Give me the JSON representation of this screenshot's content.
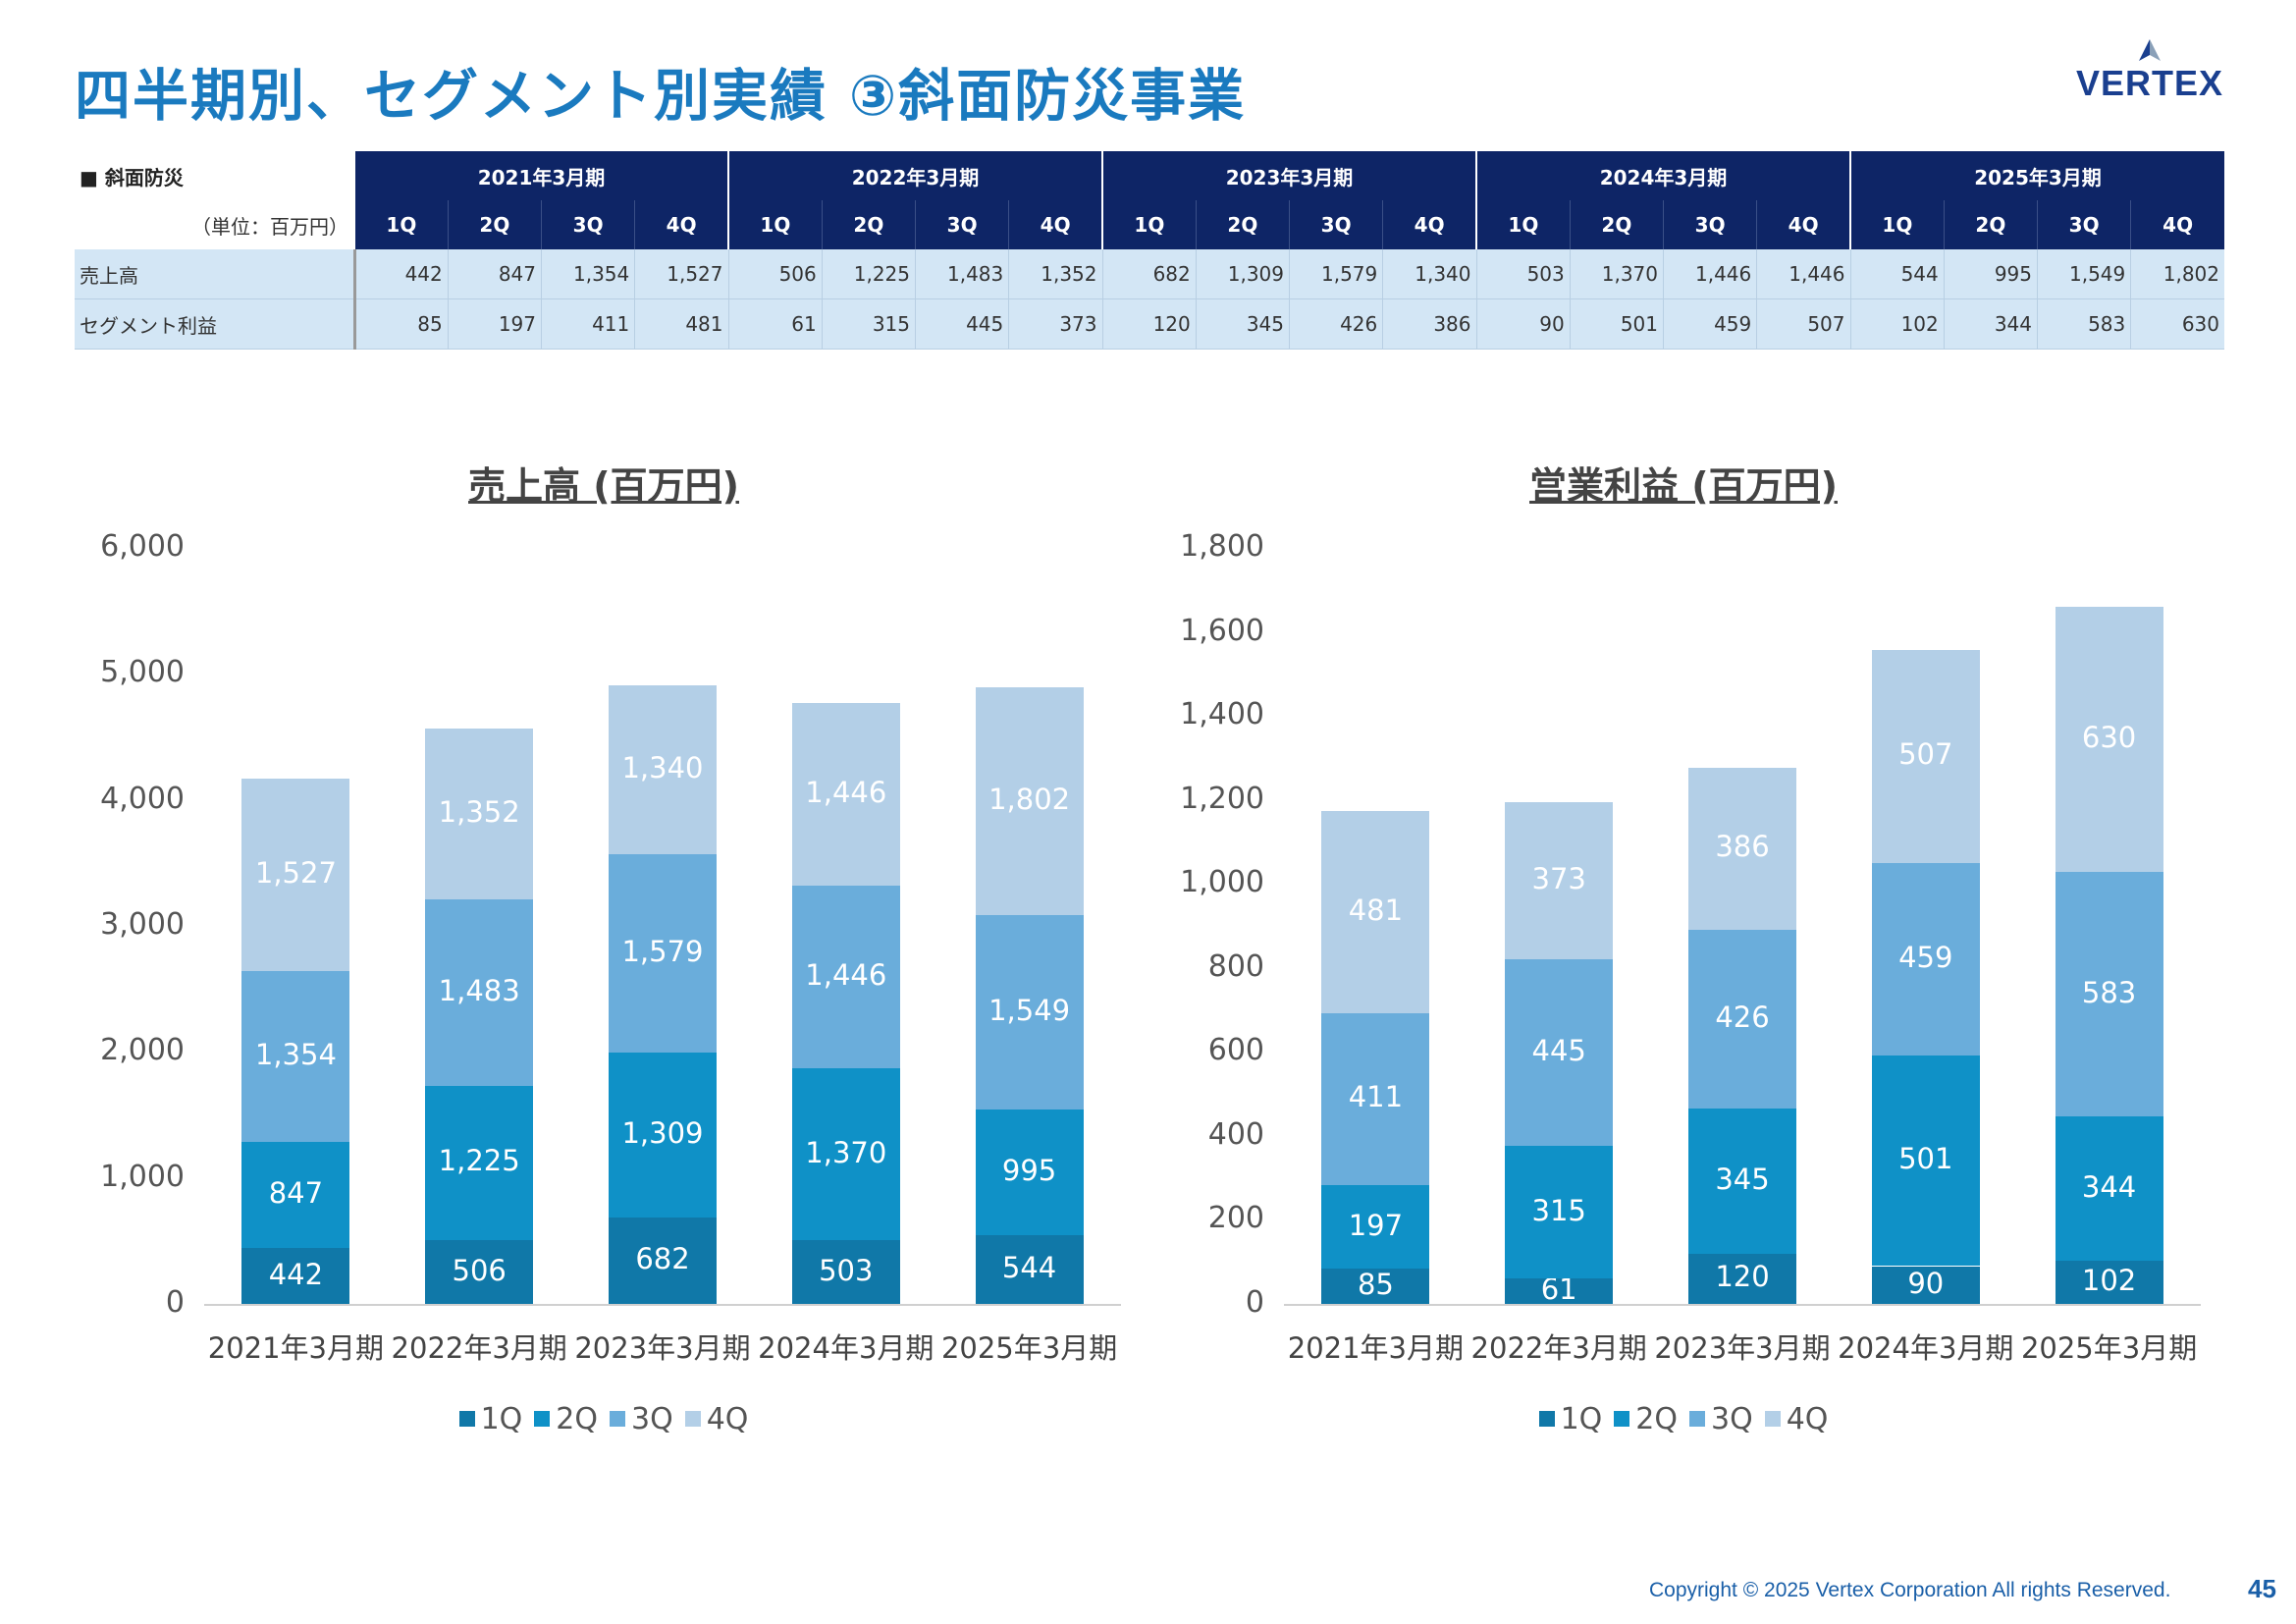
{
  "page": {
    "title": "四半期別、セグメント別実績 ③斜面防災事業",
    "logo_text": "VERTEX",
    "footer": "Copyright © 2025 Vertex Corporation All rights Reserved.",
    "page_number": "45"
  },
  "table": {
    "section_label": "■ 斜面防災",
    "unit_label": "（単位：百万円）",
    "years": [
      "2021年3月期",
      "2022年3月期",
      "2023年3月期",
      "2024年3月期",
      "2025年3月期"
    ],
    "quarters": [
      "1Q",
      "2Q",
      "3Q",
      "4Q"
    ],
    "rows": [
      {
        "label": "売上高",
        "values": [
          "442",
          "847",
          "1,354",
          "1,527",
          "506",
          "1,225",
          "1,483",
          "1,352",
          "682",
          "1,309",
          "1,579",
          "1,340",
          "503",
          "1,370",
          "1,446",
          "1,446",
          "544",
          "995",
          "1,549",
          "1,802"
        ]
      },
      {
        "label": "セグメント利益",
        "values": [
          "85",
          "197",
          "411",
          "481",
          "61",
          "315",
          "445",
          "373",
          "120",
          "345",
          "426",
          "386",
          "90",
          "501",
          "459",
          "507",
          "102",
          "344",
          "583",
          "630"
        ]
      }
    ]
  },
  "colors": {
    "q1": "#1078a8",
    "q2": "#0f91c7",
    "q3": "#6aaddb",
    "q4": "#b3cfe7",
    "title": "#1a7abf",
    "header": "#0e2566"
  },
  "chart_data": [
    {
      "type": "bar",
      "stacked": true,
      "title": "売上高 (百万円)",
      "categories": [
        "2021年3月期",
        "2022年3月期",
        "2023年3月期",
        "2024年3月期",
        "2025年3月期"
      ],
      "series": [
        {
          "name": "1Q",
          "values": [
            442,
            506,
            682,
            503,
            544
          ]
        },
        {
          "name": "2Q",
          "values": [
            847,
            1225,
            1309,
            1370,
            995
          ]
        },
        {
          "name": "3Q",
          "values": [
            1354,
            1483,
            1579,
            1446,
            1549
          ]
        },
        {
          "name": "4Q",
          "values": [
            1527,
            1352,
            1340,
            1446,
            1802
          ]
        }
      ],
      "ylim": [
        0,
        6000
      ],
      "yticks": [
        "0",
        "1,000",
        "2,000",
        "3,000",
        "4,000",
        "5,000",
        "6,000"
      ],
      "legend_position": "bottom",
      "grid": false
    },
    {
      "type": "bar",
      "stacked": true,
      "title": "営業利益 (百万円)",
      "categories": [
        "2021年3月期",
        "2022年3月期",
        "2023年3月期",
        "2024年3月期",
        "2025年3月期"
      ],
      "series": [
        {
          "name": "1Q",
          "values": [
            85,
            61,
            120,
            90,
            102
          ]
        },
        {
          "name": "2Q",
          "values": [
            197,
            315,
            345,
            501,
            344
          ]
        },
        {
          "name": "3Q",
          "values": [
            411,
            445,
            426,
            459,
            583
          ]
        },
        {
          "name": "4Q",
          "values": [
            481,
            373,
            386,
            507,
            630
          ]
        }
      ],
      "ylim": [
        0,
        1800
      ],
      "yticks": [
        "0",
        "200",
        "400",
        "600",
        "800",
        "1,000",
        "1,200",
        "1,400",
        "1,600",
        "1,800"
      ],
      "legend_position": "bottom",
      "grid": false
    }
  ]
}
